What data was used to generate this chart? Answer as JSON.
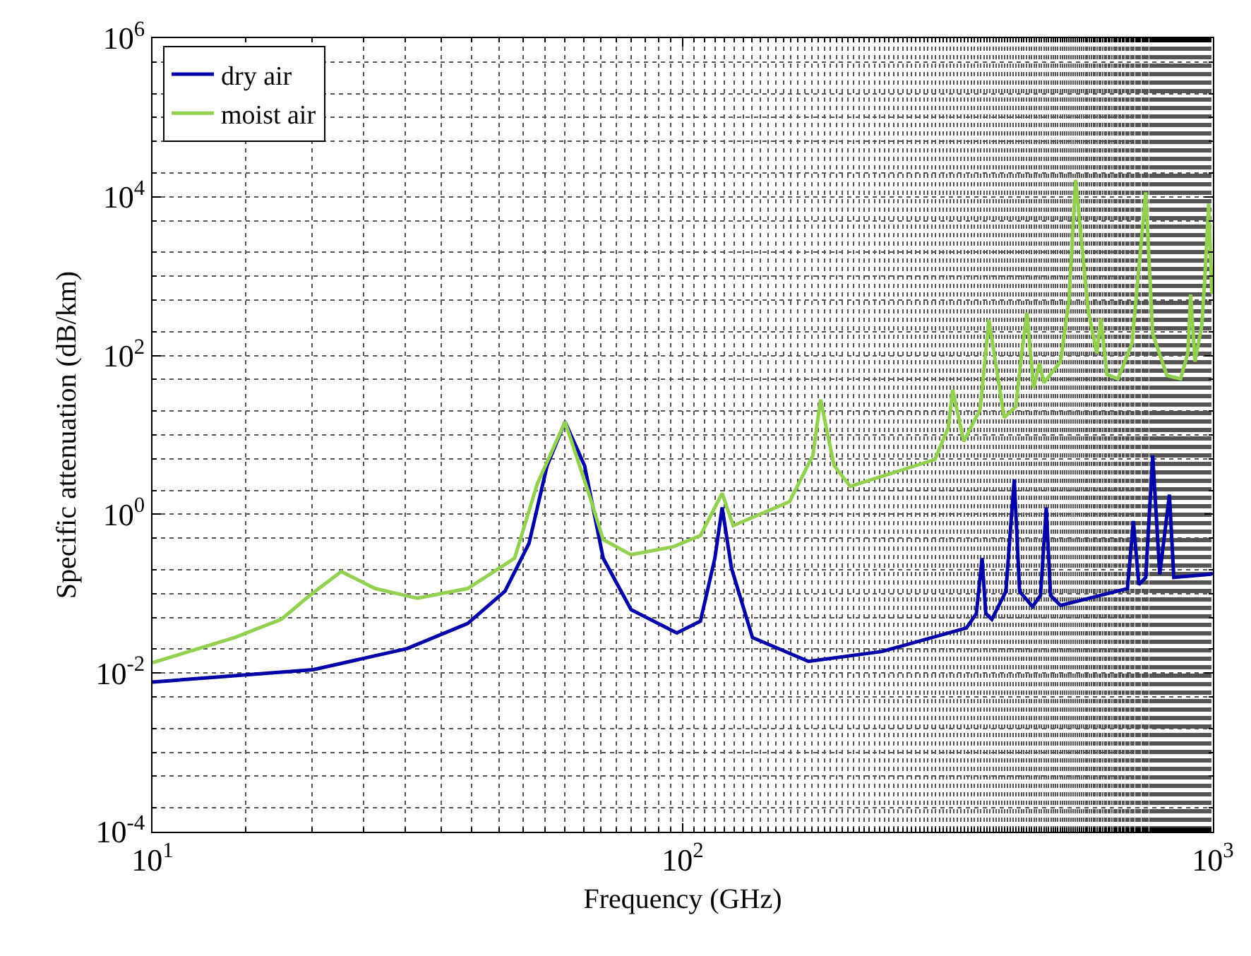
{
  "chart_data": {
    "type": "line",
    "xlabel": "Frequency (GHz)",
    "ylabel": "Specific attenuation (dB/km)",
    "log": "xy",
    "grid": true,
    "legend": "top left",
    "marker": "none",
    "line_style": "solid",
    "xlim": [
      10,
      1000
    ],
    "xticks": [
      {
        "value": 10,
        "label": "10$^{1}$"
      },
      {
        "value": 100,
        "label": "10$^{2}$"
      },
      {
        "value": 1000,
        "label": "10$^{3}$"
      }
    ],
    "ylim": [
      0.0001,
      1000000
    ],
    "yticks": [
      {
        "value": 0.0001,
        "label": "10$^{-4}$"
      },
      {
        "value": 0.01,
        "label": "10$^{-2}$"
      },
      {
        "value": 1,
        "label": "10$^{0}$"
      },
      {
        "value": 100,
        "label": "10$^{2}$"
      },
      {
        "value": 10000,
        "label": "10$^{4}$"
      },
      {
        "value": 1000000,
        "label": "10$^{6}$"
      }
    ],
    "series": [
      {
        "name": "dry air",
        "color": "#0000a8",
        "x": [
          10,
          20.1,
          30.2,
          39.3,
          46.2,
          51.3,
          55.5,
          60,
          65.3,
          70.8,
          79.9,
          97.5,
          108,
          115,
          118.7,
          123.6,
          135.4,
          172.7,
          238,
          343,
          358,
          367,
          373,
          383,
          407,
          422,
          432,
          457,
          473,
          485,
          494,
          516,
          690,
          708,
          725,
          747,
          770,
          794,
          828,
          844,
          982,
          1000
        ],
        "values": [
          0.0077,
          0.011,
          0.0203,
          0.042,
          0.107,
          0.43,
          4.1,
          14.6,
          4.1,
          0.28,
          0.063,
          0.032,
          0.045,
          0.28,
          1.22,
          0.21,
          0.028,
          0.014,
          0.0187,
          0.037,
          0.056,
          0.28,
          0.056,
          0.0475,
          0.107,
          2.76,
          0.107,
          0.0686,
          0.095,
          1.22,
          0.095,
          0.071,
          0.116,
          0.82,
          0.13,
          0.16,
          5.5,
          0.175,
          1.77,
          0.16,
          0.175,
          0.18
        ]
      },
      {
        "name": "moist air",
        "color": "#92d050",
        "x": [
          10,
          14.3,
          17.5,
          19.8,
          22.7,
          26.3,
          31.6,
          39.3,
          48.2,
          53.2,
          60,
          66.5,
          70.8,
          79.9,
          96,
          108,
          118.7,
          124.5,
          159,
          176,
          182,
          193,
          207,
          299,
          317,
          323,
          339,
          364,
          378,
          404,
          425,
          435,
          446,
          459,
          471,
          480,
          516,
          535,
          551,
          582,
          604,
          615,
          631,
          662,
          704,
          747,
          770,
          819,
          869,
          897,
          908,
          925,
          953,
          965,
          982,
          995,
          1000
        ],
        "values": [
          0.0135,
          0.028,
          0.0475,
          0.095,
          0.19,
          0.116,
          0.0875,
          0.116,
          0.28,
          2.44,
          14.6,
          1.84,
          0.48,
          0.31,
          0.39,
          0.54,
          1.84,
          0.72,
          1.44,
          5.5,
          27.9,
          4.1,
          2.25,
          4.9,
          12.4,
          37,
          8.3,
          21,
          283,
          16.5,
          22.8,
          94,
          347,
          38.7,
          80,
          45.5,
          84,
          480,
          16400,
          361,
          107,
          294,
          58,
          51,
          142,
          11400,
          188,
          56,
          51,
          107,
          587,
          84,
          240,
          880,
          8200,
          637,
          600
        ]
      }
    ]
  }
}
